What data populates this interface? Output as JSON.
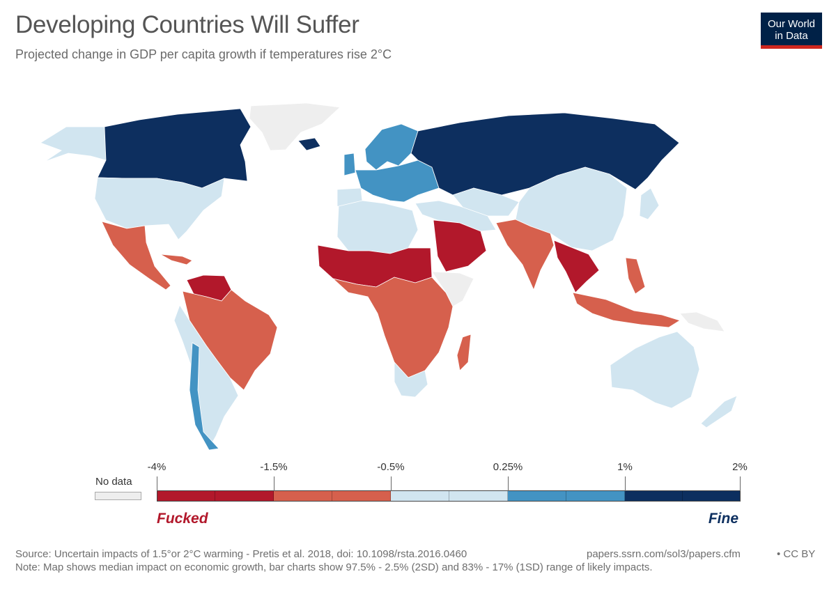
{
  "title": "Developing Countries Will Suffer",
  "subtitle": "Projected change in GDP per capita growth if temperatures rise 2°C",
  "logo": {
    "line1": "Our World",
    "line2": "in Data"
  },
  "colors": {
    "very_negative": "#b2182b",
    "negative": "#d6604d",
    "neutral": "#d1e5f0",
    "positive": "#4393c3",
    "very_positive": "#0d2f5f",
    "no_data": "#eeeeee"
  },
  "legend": {
    "no_data_label": "No data",
    "ticks": [
      "-4%",
      "-1.5%",
      "-0.5%",
      "0.25%",
      "1%",
      "2%"
    ],
    "bad_label": "Fucked",
    "good_label": "Fine"
  },
  "footer": {
    "source": "Source: Uncertain impacts of 1.5°or 2°C warming - Pretis et al. 2018, doi: 10.1098/rsta.2016.0460",
    "url": "papers.ssrn.com/sol3/papers.cfm",
    "license": "• CC BY",
    "note": "Note: Map shows median impact on economic growth, bar charts show 97.5% - 2.5% (2SD) and 83% - 17% (1SD) range of likely impacts."
  }
}
